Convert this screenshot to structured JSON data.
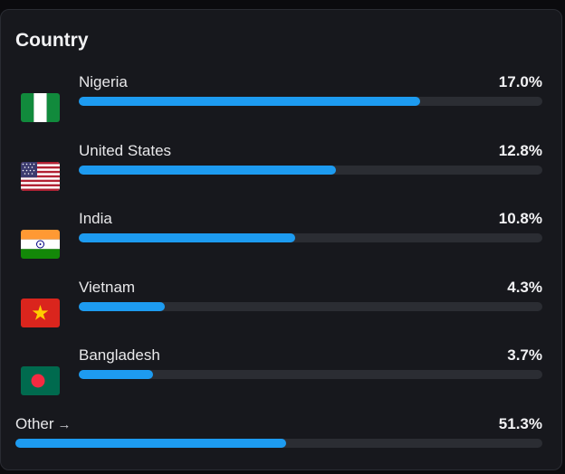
{
  "panel": {
    "title": "Country"
  },
  "countries": [
    {
      "name": "Nigeria",
      "percent_label": "17.0%",
      "percent": 17.0,
      "flag": "nigeria-flag-icon"
    },
    {
      "name": "United States",
      "percent_label": "12.8%",
      "percent": 12.8,
      "flag": "usa-flag-icon"
    },
    {
      "name": "India",
      "percent_label": "10.8%",
      "percent": 10.8,
      "flag": "india-flag-icon"
    },
    {
      "name": "Vietnam",
      "percent_label": "4.3%",
      "percent": 4.3,
      "flag": "vietnam-flag-icon"
    },
    {
      "name": "Bangladesh",
      "percent_label": "3.7%",
      "percent": 3.7,
      "flag": "bangladesh-flag-icon"
    }
  ],
  "other": {
    "label": "Other",
    "arrow": "→",
    "percent_label": "51.3%",
    "percent": 51.3
  },
  "colors": {
    "bar_fill": "#1d9bf0",
    "bar_track": "#2b2d33",
    "background": "#17181d"
  },
  "bar_scale_max_percent": 23.1
}
